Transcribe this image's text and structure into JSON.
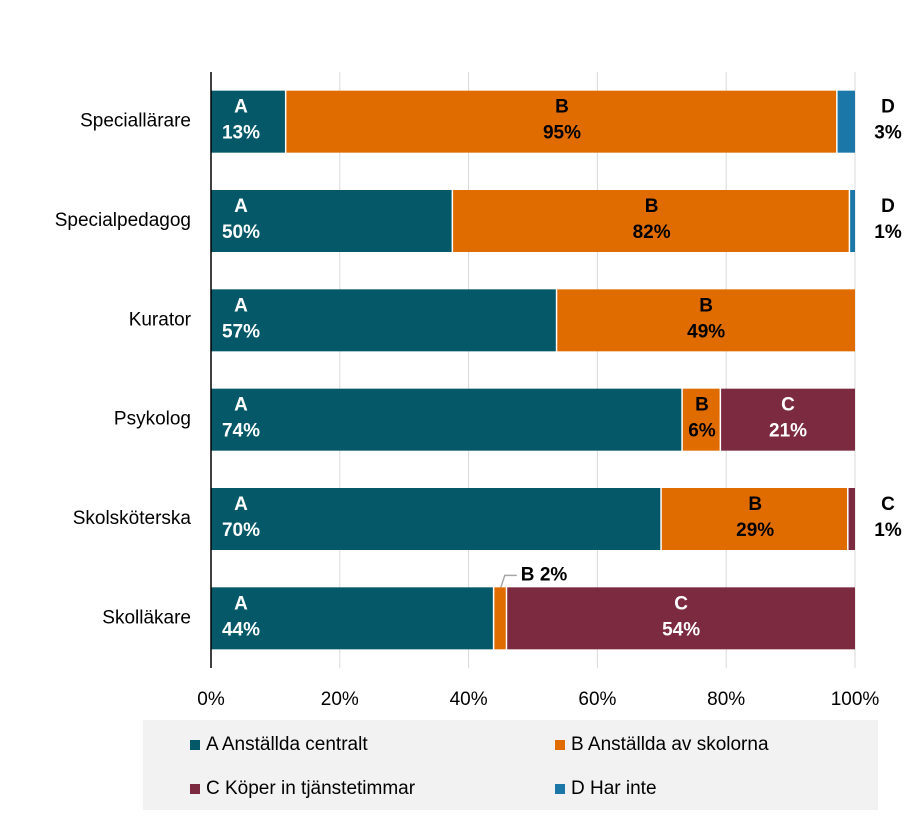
{
  "chart_data": {
    "type": "bar",
    "orientation": "horizontal",
    "stacked": "percent",
    "categories": [
      "Speciallärare",
      "Specialpedagog",
      "Kurator",
      "Psykolog",
      "Skolsköterska",
      "Skolläkare"
    ],
    "series": [
      {
        "name": "A Anställda centralt",
        "short": "A",
        "color": "#045868",
        "values": [
          13,
          50,
          57,
          74,
          70,
          44
        ],
        "value_labels": [
          "13%",
          "50%",
          "57%",
          "74%",
          "70%",
          "44%"
        ]
      },
      {
        "name": "B Anställda av skolorna",
        "short": "B",
        "color": "#e06c00",
        "values": [
          95,
          82,
          49,
          6,
          29,
          2
        ],
        "value_labels": [
          "95%",
          "82%",
          "49%",
          "6%",
          "29%",
          "2%"
        ]
      },
      {
        "name": "C Köper in tjänstetimmar",
        "short": "C",
        "color": "#7c2a40",
        "values": [
          null,
          null,
          null,
          21,
          1,
          54
        ],
        "value_labels": [
          null,
          null,
          null,
          "21%",
          "1%",
          "54%"
        ]
      },
      {
        "name": "D Har inte",
        "short": "D",
        "color": "#1a77a8",
        "values": [
          3,
          1,
          null,
          null,
          null,
          null
        ],
        "value_labels": [
          "3%",
          "1%",
          null,
          null,
          null,
          null
        ]
      }
    ],
    "xlim": [
      0,
      100
    ],
    "xticks": [
      {
        "value": 0,
        "label": "0%"
      },
      {
        "value": 20,
        "label": "20%"
      },
      {
        "value": 40,
        "label": "40%"
      },
      {
        "value": 60,
        "label": "60%"
      },
      {
        "value": 80,
        "label": "80%"
      },
      {
        "value": 100,
        "label": "100%"
      }
    ],
    "grid": true
  }
}
